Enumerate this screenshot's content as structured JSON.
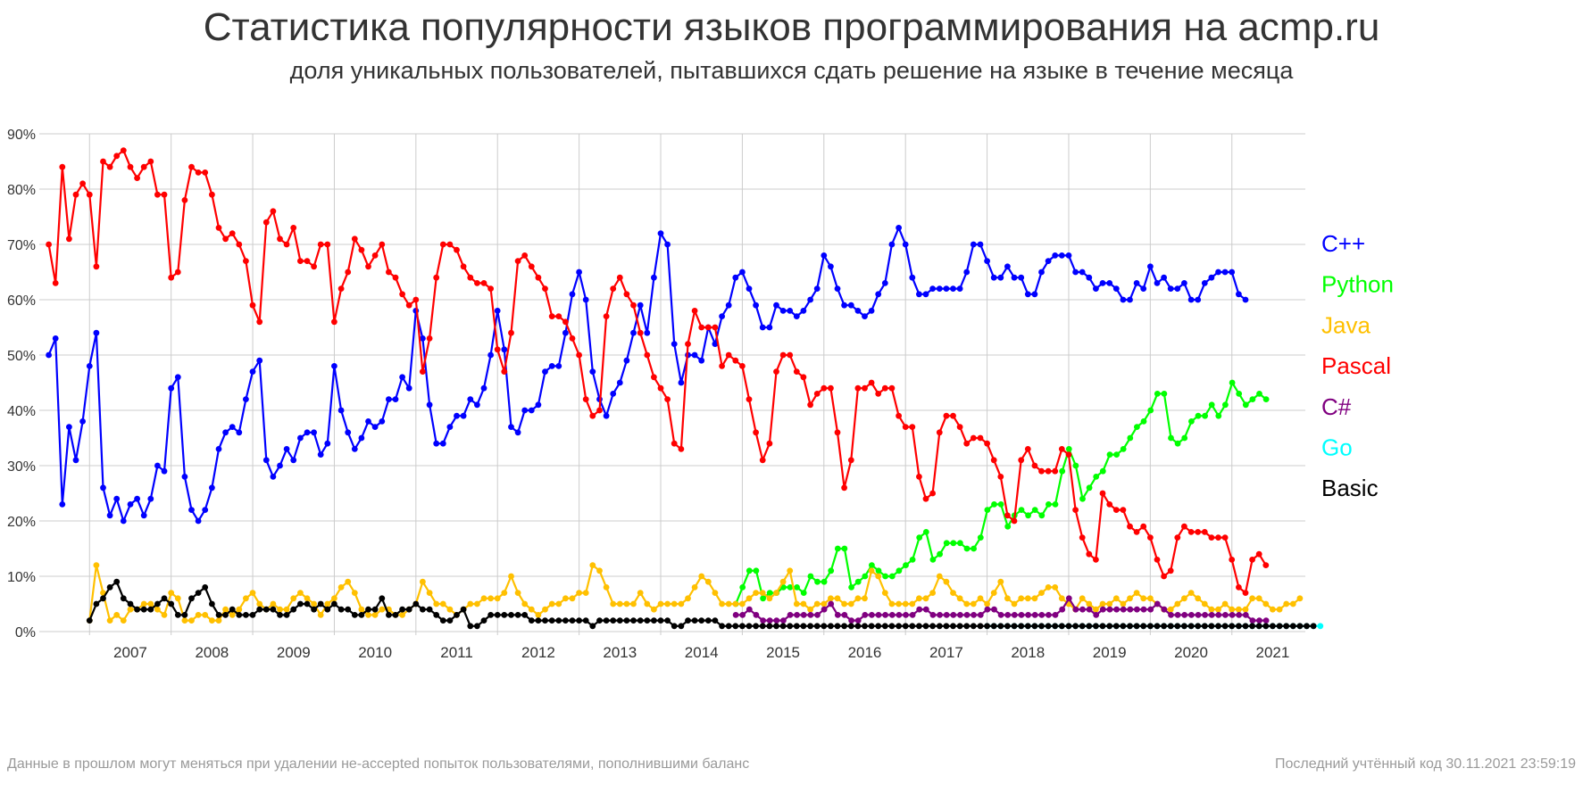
{
  "chart_data": {
    "type": "line",
    "title": "Статистика популярности языков программирования на acmp.ru",
    "subtitle": "доля уникальных пользователей, пытавшихся сдать решение на языке в течение месяца",
    "footnote_left": "Данные в прошлом могут меняться при удалении не-accepted попыток пользователями, пополнившими баланс",
    "footnote_right": "Последний учтённый код 30.11.2021 23:59:19",
    "xlabel": "",
    "ylabel": "",
    "x_range": [
      2006.45,
      2021.9
    ],
    "ylim": [
      0,
      90
    ],
    "yticks": [
      "0%",
      "10%",
      "20%",
      "30%",
      "40%",
      "50%",
      "60%",
      "70%",
      "80%",
      "90%"
    ],
    "xticks": [
      "2007",
      "2008",
      "2009",
      "2010",
      "2011",
      "2012",
      "2013",
      "2014",
      "2015",
      "2016",
      "2017",
      "2018",
      "2019",
      "2020",
      "2021"
    ],
    "grid": true,
    "legend": "right",
    "series": [
      {
        "name": "C++",
        "color": "#0000ff",
        "start": 2006.5,
        "values": [
          50,
          53,
          23,
          37,
          31,
          38,
          48,
          54,
          26,
          21,
          24,
          20,
          23,
          24,
          21,
          24,
          30,
          29,
          44,
          46,
          28,
          22,
          20,
          22,
          26,
          33,
          36,
          37,
          36,
          42,
          47,
          49,
          31,
          28,
          30,
          33,
          31,
          35,
          36,
          36,
          32,
          34,
          48,
          40,
          36,
          33,
          35,
          38,
          37,
          38,
          42,
          42,
          46,
          44,
          58,
          53,
          41,
          34,
          34,
          37,
          39,
          39,
          42,
          41,
          44,
          50,
          58,
          51,
          37,
          36,
          40,
          40,
          41,
          47,
          48,
          48,
          54,
          61,
          65,
          60,
          47,
          42,
          39,
          43,
          45,
          49,
          54,
          59,
          54,
          64,
          72,
          70,
          52,
          45,
          50,
          50,
          49,
          55,
          52,
          57,
          59,
          64,
          65,
          62,
          59,
          55,
          55,
          59,
          58,
          58,
          57,
          58,
          60,
          62,
          68,
          66,
          62,
          59,
          59,
          58,
          57,
          58,
          61,
          63,
          70,
          73,
          70,
          64,
          61,
          61,
          62,
          62,
          62,
          62,
          62,
          65,
          70,
          70,
          67,
          64,
          64,
          66,
          64,
          64,
          61,
          61,
          65,
          67,
          68,
          68,
          68,
          65,
          65,
          64,
          62,
          63,
          63,
          62,
          60,
          60,
          63,
          62,
          66,
          63,
          64,
          62,
          62,
          63,
          60,
          60,
          63,
          64,
          65,
          65,
          65,
          61,
          60
        ]
      },
      {
        "name": "Python",
        "color": "#00ff00",
        "start": 2014.92,
        "values": [
          5,
          8,
          11,
          11,
          6,
          7,
          7,
          8,
          8,
          8,
          7,
          10,
          9,
          9,
          11,
          15,
          15,
          8,
          9,
          10,
          12,
          11,
          10,
          10,
          11,
          12,
          13,
          17,
          18,
          13,
          14,
          16,
          16,
          16,
          15,
          15,
          17,
          22,
          23,
          23,
          19,
          21,
          22,
          21,
          22,
          21,
          23,
          23,
          29,
          33,
          30,
          24,
          26,
          28,
          29,
          32,
          32,
          33,
          35,
          37,
          38,
          40,
          43,
          43,
          35,
          34,
          35,
          38,
          39,
          39,
          41,
          39,
          41,
          45,
          43,
          41,
          42,
          43,
          42
        ]
      },
      {
        "name": "Java",
        "color": "#ffc000",
        "start": 2007.0,
        "values": [
          2,
          12,
          7,
          2,
          3,
          2,
          4,
          4,
          5,
          5,
          4,
          3,
          7,
          6,
          2,
          2,
          3,
          3,
          2,
          2,
          4,
          3,
          4,
          6,
          7,
          5,
          4,
          5,
          4,
          4,
          6,
          7,
          6,
          5,
          3,
          5,
          6,
          8,
          9,
          7,
          4,
          3,
          3,
          4,
          4,
          3,
          3,
          4,
          5,
          9,
          7,
          5,
          5,
          4,
          3,
          4,
          5,
          5,
          6,
          6,
          6,
          7,
          10,
          7,
          5,
          4,
          3,
          4,
          5,
          5,
          6,
          6,
          7,
          7,
          12,
          11,
          8,
          5,
          5,
          5,
          5,
          7,
          5,
          4,
          5,
          5,
          5,
          5,
          6,
          8,
          10,
          9,
          7,
          5,
          5,
          5,
          5,
          6,
          7,
          7,
          6,
          7,
          9,
          11,
          5,
          5,
          4,
          5,
          5,
          6,
          6,
          5,
          5,
          6,
          6,
          11,
          10,
          7,
          5,
          5,
          5,
          5,
          6,
          6,
          7,
          10,
          9,
          7,
          6,
          5,
          5,
          6,
          5,
          7,
          9,
          6,
          5,
          6,
          6,
          6,
          7,
          8,
          8,
          6,
          5,
          4,
          6,
          5,
          4,
          5,
          5,
          6,
          5,
          6,
          7,
          6,
          6,
          5,
          4,
          4,
          5,
          6,
          7,
          6,
          5,
          4,
          4,
          5,
          4,
          4,
          4,
          6,
          6,
          5,
          4,
          4,
          5,
          5,
          6
        ]
      },
      {
        "name": "Pascal",
        "color": "#ff0000",
        "start": 2006.5,
        "values": [
          70,
          63,
          84,
          71,
          79,
          81,
          79,
          66,
          85,
          84,
          86,
          87,
          84,
          82,
          84,
          85,
          79,
          79,
          64,
          65,
          78,
          84,
          83,
          83,
          79,
          73,
          71,
          72,
          70,
          67,
          59,
          56,
          74,
          76,
          71,
          70,
          73,
          67,
          67,
          66,
          70,
          70,
          56,
          62,
          65,
          71,
          69,
          66,
          68,
          70,
          65,
          64,
          61,
          59,
          60,
          47,
          53,
          64,
          70,
          70,
          69,
          66,
          64,
          63,
          63,
          62,
          51,
          47,
          54,
          67,
          68,
          66,
          64,
          62,
          57,
          57,
          56,
          53,
          50,
          42,
          39,
          40,
          57,
          62,
          64,
          61,
          59,
          54,
          50,
          46,
          44,
          42,
          34,
          33,
          52,
          58,
          55,
          55,
          55,
          48,
          50,
          49,
          48,
          42,
          36,
          31,
          34,
          47,
          50,
          50,
          47,
          46,
          41,
          43,
          44,
          44,
          36,
          26,
          31,
          44,
          44,
          45,
          43,
          44,
          44,
          39,
          37,
          37,
          28,
          24,
          25,
          36,
          39,
          39,
          37,
          34,
          35,
          35,
          34,
          31,
          28,
          21,
          20,
          31,
          33,
          30,
          29,
          29,
          29,
          33,
          32,
          22,
          17,
          14,
          13,
          25,
          23,
          22,
          22,
          19,
          18,
          19,
          17,
          13,
          10,
          11,
          17,
          19,
          18,
          18,
          18,
          17,
          17,
          17,
          13,
          8,
          7,
          13,
          14,
          12
        ]
      },
      {
        "name": "C#",
        "color": "#800080",
        "start": 2014.92,
        "values": [
          3,
          3,
          4,
          3,
          2,
          2,
          2,
          2,
          3,
          3,
          3,
          3,
          3,
          4,
          5,
          3,
          3,
          2,
          2,
          3,
          3,
          3,
          3,
          3,
          3,
          3,
          3,
          4,
          4,
          3,
          3,
          3,
          3,
          3,
          3,
          3,
          3,
          4,
          4,
          3,
          3,
          3,
          3,
          3,
          3,
          3,
          3,
          3,
          4,
          6,
          4,
          4,
          4,
          3,
          4,
          4,
          4,
          4,
          4,
          4,
          4,
          4,
          5,
          4,
          3,
          3,
          3,
          3,
          3,
          3,
          3,
          3,
          3,
          3,
          3,
          3,
          2,
          2,
          2
        ]
      },
      {
        "name": "Go",
        "color": "#00ffff",
        "start": 2018.0,
        "values": [
          1,
          1,
          1,
          1,
          1,
          1,
          1,
          1,
          1,
          1,
          1,
          1,
          1,
          1,
          1,
          1,
          1,
          1,
          1,
          1,
          1,
          1,
          1,
          1,
          1,
          1,
          1,
          1,
          1,
          1,
          1,
          1,
          1,
          1,
          1,
          1,
          1,
          1,
          1,
          1,
          1,
          1,
          1,
          1,
          1,
          1,
          1,
          1,
          1,
          1
        ]
      },
      {
        "name": "Basic",
        "color": "#000000",
        "start": 2007.0,
        "values": [
          2,
          5,
          6,
          8,
          9,
          6,
          5,
          4,
          4,
          4,
          5,
          6,
          5,
          3,
          3,
          6,
          7,
          8,
          5,
          3,
          3,
          4,
          3,
          3,
          3,
          4,
          4,
          4,
          3,
          3,
          4,
          5,
          5,
          4,
          5,
          4,
          5,
          4,
          4,
          3,
          3,
          4,
          4,
          6,
          3,
          3,
          4,
          4,
          5,
          4,
          4,
          3,
          2,
          2,
          3,
          4,
          1,
          1,
          2,
          3,
          3,
          3,
          3,
          3,
          3,
          2,
          2,
          2,
          2,
          2,
          2,
          2,
          2,
          2,
          1,
          2,
          2,
          2,
          2,
          2,
          2,
          2,
          2,
          2,
          2,
          2,
          1,
          1,
          2,
          2,
          2,
          2,
          2,
          1,
          1,
          1,
          1,
          1,
          1,
          1,
          1,
          1,
          1,
          1,
          1,
          1,
          1,
          1,
          1,
          1,
          1,
          1,
          1,
          1,
          1,
          1,
          1,
          1,
          1,
          1,
          1,
          1,
          1,
          1,
          1,
          1,
          1,
          1,
          1,
          1,
          1,
          1,
          1,
          1,
          1,
          1,
          1,
          1,
          1,
          1,
          1,
          1,
          1,
          1,
          1,
          1,
          1,
          1,
          1,
          1,
          1,
          1,
          1,
          1,
          1,
          1,
          1,
          1,
          1,
          1,
          1,
          1,
          1,
          1,
          1,
          1,
          1,
          1,
          1,
          1,
          1,
          1,
          1,
          1,
          1,
          1,
          1,
          1,
          1,
          1,
          1
        ]
      }
    ]
  }
}
